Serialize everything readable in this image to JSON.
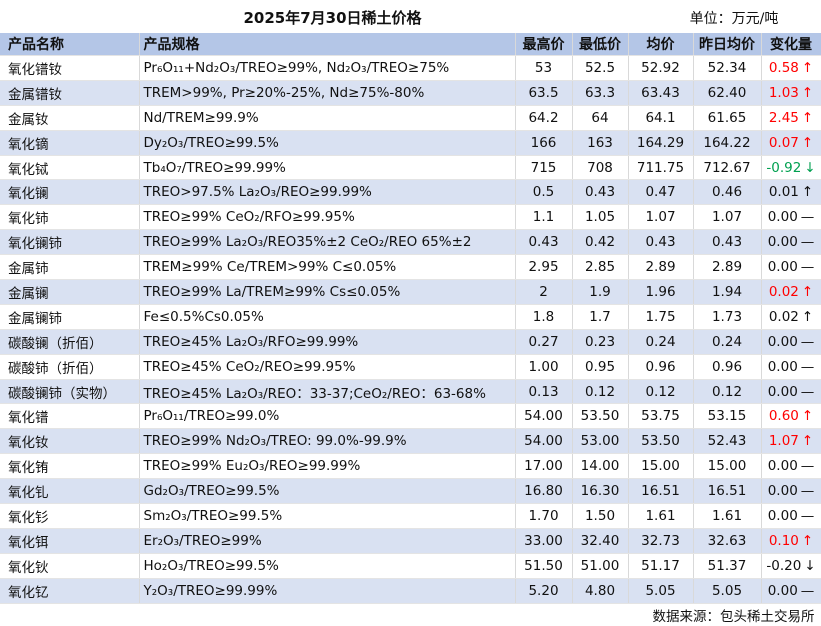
{
  "title": "2025年7月30日稀土价格",
  "unit": "单位：万元/吨",
  "headers": [
    "产品名称",
    "产品规格",
    "最高价",
    "最低价",
    "均价",
    "昨日均价",
    "变化量"
  ],
  "rows": [
    {
      "name": "氧化镨钕",
      "spec": "Pr₆O₁₁+Nd₂O₃/TREO≥99%, Nd₂O₃/TREO≥75%",
      "high": "53",
      "low": "52.5",
      "avg": "52.92",
      "prev": "52.34",
      "change": "0.58",
      "arrow": "↑",
      "trend": "up"
    },
    {
      "name": "金属镨钕",
      "spec": "TREM>99%, Pr≥20%-25%, Nd≥75%-80%",
      "high": "63.5",
      "low": "63.3",
      "avg": "63.43",
      "prev": "62.40",
      "change": "1.03",
      "arrow": "↑",
      "trend": "up"
    },
    {
      "name": "金属钕",
      "spec": "Nd/TREM≥99.9%",
      "high": "64.2",
      "low": "64",
      "avg": "64.1",
      "prev": "61.65",
      "change": "2.45",
      "arrow": "↑",
      "trend": "up"
    },
    {
      "name": "氧化镝",
      "spec": "Dy₂O₃/TREO≥99.5%",
      "high": "166",
      "low": "163",
      "avg": "164.29",
      "prev": "164.22",
      "change": "0.07",
      "arrow": "↑",
      "trend": "up"
    },
    {
      "name": "氧化铽",
      "spec": "Tb₄O₇/TREO≥99.99%",
      "high": "715",
      "low": "708",
      "avg": "711.75",
      "prev": "712.67",
      "change": "-0.92",
      "arrow": "↓",
      "trend": "down"
    },
    {
      "name": "氧化镧",
      "spec": "TREO>97.5% La₂O₃/REO≥99.99%",
      "high": "0.5",
      "low": "0.43",
      "avg": "0.47",
      "prev": "0.46",
      "change": "0.01",
      "arrow": "↑",
      "trend": "flat"
    },
    {
      "name": "氧化铈",
      "spec": "TREO≥99% CeO₂/RFO≥99.95%",
      "high": "1.1",
      "low": "1.05",
      "avg": "1.07",
      "prev": "1.07",
      "change": "0.00",
      "arrow": "—",
      "trend": "flat"
    },
    {
      "name": "氧化镧铈",
      "spec": "TREO≥99% La₂O₃/REO35%±2 CeO₂/REO 65%±2",
      "high": "0.43",
      "low": "0.42",
      "avg": "0.43",
      "prev": "0.43",
      "change": "0.00",
      "arrow": "—",
      "trend": "flat"
    },
    {
      "name": "金属铈",
      "spec": "TREM≥99% Ce/TREM>99% C≤0.05%",
      "high": "2.95",
      "low": "2.85",
      "avg": "2.89",
      "prev": "2.89",
      "change": "0.00",
      "arrow": "—",
      "trend": "flat"
    },
    {
      "name": "金属镧",
      "spec": "TREO≥99% La/TREM≥99% Cs≤0.05%",
      "high": "2",
      "low": "1.9",
      "avg": "1.96",
      "prev": "1.94",
      "change": "0.02",
      "arrow": "↑",
      "trend": "up"
    },
    {
      "name": "金属镧铈",
      "spec": "Fe≤0.5%Cs0.05%",
      "high": "1.8",
      "low": "1.7",
      "avg": "1.75",
      "prev": "1.73",
      "change": "0.02",
      "arrow": "↑",
      "trend": "flat"
    },
    {
      "name": "碳酸镧（折佰）",
      "spec": "TREO≥45% La₂O₃/RFO≥99.99%",
      "high": "0.27",
      "low": "0.23",
      "avg": "0.24",
      "prev": "0.24",
      "change": "0.00",
      "arrow": "—",
      "trend": "flat"
    },
    {
      "name": "碳酸铈（折佰）",
      "spec": "TREO≥45% CeO₂/REO≥99.95%",
      "high": "1.00",
      "low": "0.95",
      "avg": "0.96",
      "prev": "0.96",
      "change": "0.00",
      "arrow": "—",
      "trend": "flat"
    },
    {
      "name": "碳酸镧铈（实物）",
      "spec": "TREO≥45% La₂O₃/REO：33-37;CeO₂/REO：63-68%",
      "high": "0.13",
      "low": "0.12",
      "avg": "0.12",
      "prev": "0.12",
      "change": "0.00",
      "arrow": "—",
      "trend": "flat"
    },
    {
      "name": "氧化镨",
      "spec": "Pr₆O₁₁/TREO≥99.0%",
      "high": "54.00",
      "low": "53.50",
      "avg": "53.75",
      "prev": "53.15",
      "change": "0.60",
      "arrow": "↑",
      "trend": "up"
    },
    {
      "name": "氧化钕",
      "spec": "TREO≥99% Nd₂O₃/TREO: 99.0%-99.9%",
      "high": "54.00",
      "low": "53.00",
      "avg": "53.50",
      "prev": "52.43",
      "change": "1.07",
      "arrow": "↑",
      "trend": "up"
    },
    {
      "name": "氧化铕",
      "spec": "TREO≥99% Eu₂O₃/REO≥99.99%",
      "high": "17.00",
      "low": "14.00",
      "avg": "15.00",
      "prev": "15.00",
      "change": "0.00",
      "arrow": "—",
      "trend": "flat"
    },
    {
      "name": "氧化钆",
      "spec": "Gd₂O₃/TREO≥99.5%",
      "high": "16.80",
      "low": "16.30",
      "avg": "16.51",
      "prev": "16.51",
      "change": "0.00",
      "arrow": "—",
      "trend": "flat"
    },
    {
      "name": "氧化钐",
      "spec": "Sm₂O₃/TREO≥99.5%",
      "high": "1.70",
      "low": "1.50",
      "avg": "1.61",
      "prev": "1.61",
      "change": "0.00",
      "arrow": "—",
      "trend": "flat"
    },
    {
      "name": "氧化铒",
      "spec": "Er₂O₃/TREO≥99%",
      "high": "33.00",
      "low": "32.40",
      "avg": "32.73",
      "prev": "32.63",
      "change": "0.10",
      "arrow": "↑",
      "trend": "up"
    },
    {
      "name": "氧化钬",
      "spec": "Ho₂O₃/TREO≥99.5%",
      "high": "51.50",
      "low": "51.00",
      "avg": "51.17",
      "prev": "51.37",
      "change": "-0.20",
      "arrow": "↓",
      "trend": "flat"
    },
    {
      "name": "氧化钇",
      "spec": "Y₂O₃/TREO≥99.99%",
      "high": "5.20",
      "low": "4.80",
      "avg": "5.05",
      "prev": "5.05",
      "change": "0.00",
      "arrow": "—",
      "trend": "flat"
    }
  ],
  "source": "数据来源：包头稀土交易所",
  "colors": {
    "header_bg": "#b4c6e7",
    "stripe_bg": "#d9e1f2",
    "up": "#ff0000",
    "down": "#00a050"
  }
}
